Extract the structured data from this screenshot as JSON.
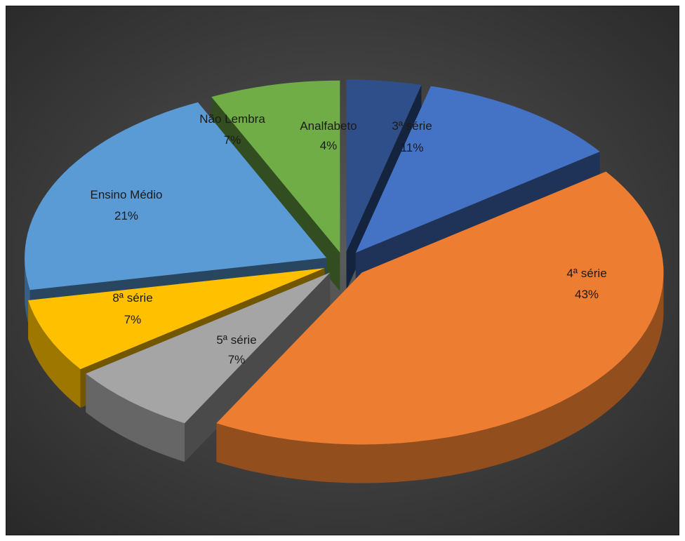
{
  "chart_data": {
    "type": "pie",
    "title": "",
    "style": "3d-exploded",
    "background": "#3a3a3a",
    "label_color": "#1a1a1a",
    "slices": [
      {
        "label": "Analfabeto",
        "value": 4,
        "value_label": "4%",
        "color": "#2f4f8a"
      },
      {
        "label": "3ª série",
        "value": 11,
        "value_label": "11%",
        "color": "#4472c4"
      },
      {
        "label": "4ª série",
        "value": 43,
        "value_label": "43%",
        "color": "#ed7d31"
      },
      {
        "label": "5ª série",
        "value": 7,
        "value_label": "7%",
        "color": "#a5a5a5"
      },
      {
        "label": "8ª série",
        "value": 7,
        "value_label": "7%",
        "color": "#ffc000"
      },
      {
        "label": "Ensino Médio",
        "value": 21,
        "value_label": "21%",
        "color": "#5b9bd5"
      },
      {
        "label": "Não Lembra",
        "value": 7,
        "value_label": "7%",
        "color": "#70ad47"
      }
    ]
  }
}
